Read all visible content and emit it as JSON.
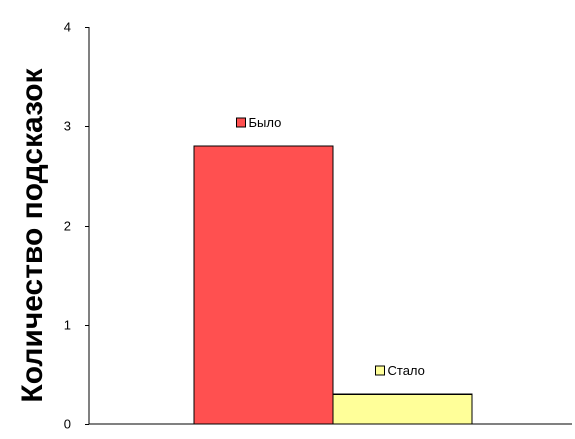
{
  "chart_data": {
    "type": "bar",
    "ylabel": "Количество подсказок",
    "xlabel": "",
    "ylim": [
      0,
      4
    ],
    "yticks": [
      0,
      1,
      2,
      3,
      4
    ],
    "grid": false,
    "series": [
      {
        "name": "Было",
        "values": [
          2.8
        ],
        "color": "#ff5050"
      },
      {
        "name": "Стало",
        "values": [
          0.3
        ],
        "color": "#ffff99"
      }
    ]
  }
}
